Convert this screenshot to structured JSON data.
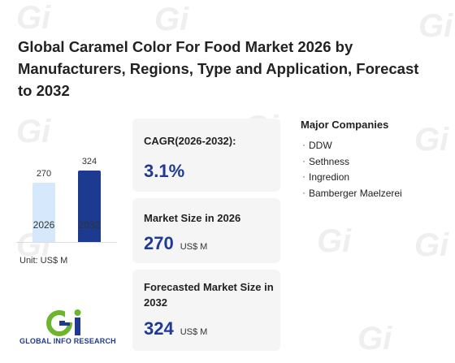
{
  "title": "Global Caramel Color For Food Market 2026 by Manufacturers, Regions, Type and Application, Forecast to 2032",
  "chart_data": {
    "type": "bar",
    "categories": [
      "2026",
      "2032"
    ],
    "values": [
      270,
      324
    ],
    "colors": [
      "#d6e8fb",
      "#1c3a8f"
    ],
    "unit": "Unit: US$ M"
  },
  "cards": {
    "cagr": {
      "label": "CAGR(2026-2032):",
      "value": "3.1%"
    },
    "market_size": {
      "label": "Market Size in 2026",
      "value": "270",
      "unit": "US$ M"
    },
    "forecast": {
      "label": "Forecasted Market Size in 2032",
      "value": "324",
      "unit": "US$ M"
    }
  },
  "companies": {
    "title": "Major Companies",
    "items": [
      "DDW",
      "Sethness",
      "Ingredion",
      "Bamberger Maelzerei"
    ]
  },
  "logo": {
    "text": "GLOBAL INFO RESEARCH",
    "color_green": "#6cb52d",
    "color_blue": "#1f3a93"
  },
  "watermark": "GLOBAL INFO RESEARCH"
}
